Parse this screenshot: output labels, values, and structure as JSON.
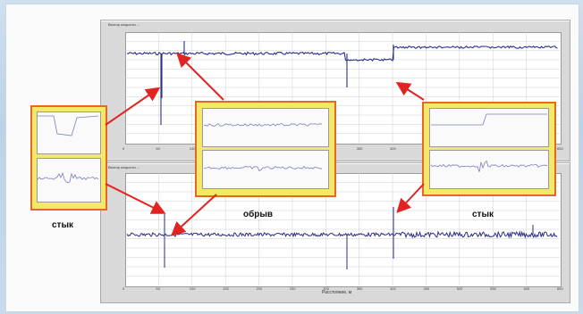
{
  "labels": {
    "left_joint": "стык",
    "break": "обрыв",
    "right_joint": "стык"
  },
  "colors": {
    "signal": "#2b2f86",
    "arrow": "#e32222",
    "callout_border": "#e46a22",
    "callout_fill": "#f3e86a"
  },
  "top_plot": {
    "title": "Вектор скорости ...",
    "x_ticks": [
      "0",
      "50",
      "100",
      "150",
      "200",
      "250",
      "300",
      "350",
      "400",
      "450",
      "500",
      "550",
      "600",
      "650"
    ]
  },
  "bottom_plot": {
    "title": "Вектор скорости ...",
    "x_label": "Расстояние, м",
    "x_ticks": [
      "0",
      "50",
      "100",
      "150",
      "200",
      "250",
      "300",
      "350",
      "400",
      "450",
      "500",
      "550",
      "600",
      "650"
    ]
  }
}
